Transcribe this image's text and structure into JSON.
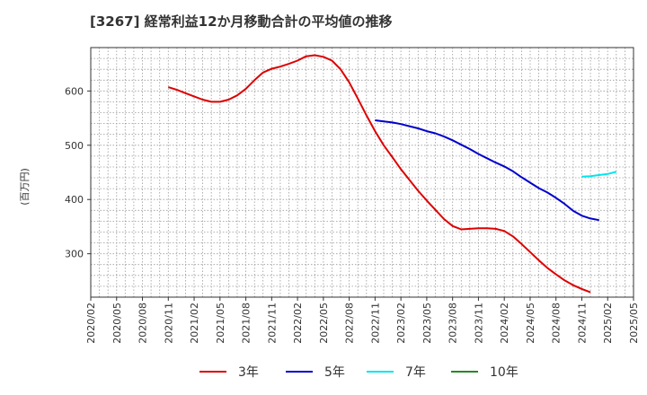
{
  "chart_data": {
    "type": "line",
    "title": "[3267]  経常利益12か月移動合計の平均値の推移",
    "xlabel": "",
    "ylabel": "(百万円)",
    "ylim": [
      220,
      680
    ],
    "yticks": [
      300,
      400,
      500,
      600
    ],
    "x": [
      "2020/02",
      "2020/05",
      "2020/08",
      "2020/11",
      "2021/02",
      "2021/05",
      "2021/08",
      "2021/11",
      "2022/02",
      "2022/05",
      "2022/08",
      "2022/11",
      "2023/02",
      "2023/05",
      "2023/08",
      "2023/11",
      "2024/02",
      "2024/05",
      "2024/08",
      "2024/11",
      "2025/02",
      "2025/05"
    ],
    "grid": true,
    "legend_position": "bottom",
    "series": [
      {
        "name": "3年",
        "color": "#dd0000",
        "points": [
          [
            "2020/11",
            607
          ],
          [
            "2020/12",
            602
          ],
          [
            "2021/01",
            596
          ],
          [
            "2021/02",
            590
          ],
          [
            "2021/03",
            584
          ],
          [
            "2021/04",
            580
          ],
          [
            "2021/05",
            580
          ],
          [
            "2021/06",
            584
          ],
          [
            "2021/07",
            592
          ],
          [
            "2021/08",
            604
          ],
          [
            "2021/09",
            620
          ],
          [
            "2021/10",
            634
          ],
          [
            "2021/11",
            641
          ],
          [
            "2021/12",
            645
          ],
          [
            "2022/01",
            650
          ],
          [
            "2022/02",
            656
          ],
          [
            "2022/03",
            664
          ],
          [
            "2022/04",
            666
          ],
          [
            "2022/05",
            663
          ],
          [
            "2022/06",
            656
          ],
          [
            "2022/07",
            640
          ],
          [
            "2022/08",
            616
          ],
          [
            "2022/09",
            586
          ],
          [
            "2022/10",
            555
          ],
          [
            "2022/11",
            526
          ],
          [
            "2022/12",
            500
          ],
          [
            "2023/01",
            478
          ],
          [
            "2023/02",
            456
          ],
          [
            "2023/03",
            436
          ],
          [
            "2023/04",
            416
          ],
          [
            "2023/05",
            398
          ],
          [
            "2023/06",
            381
          ],
          [
            "2023/07",
            364
          ],
          [
            "2023/08",
            351
          ],
          [
            "2023/09",
            345
          ],
          [
            "2023/10",
            346
          ],
          [
            "2023/11",
            347
          ],
          [
            "2023/12",
            347
          ],
          [
            "2024/01",
            346
          ],
          [
            "2024/02",
            342
          ],
          [
            "2024/03",
            332
          ],
          [
            "2024/04",
            318
          ],
          [
            "2024/05",
            303
          ],
          [
            "2024/06",
            288
          ],
          [
            "2024/07",
            274
          ],
          [
            "2024/08",
            262
          ],
          [
            "2024/09",
            251
          ],
          [
            "2024/10",
            242
          ],
          [
            "2024/11",
            235
          ],
          [
            "2024/12",
            229
          ]
        ]
      },
      {
        "name": "5年",
        "color": "#0000cc",
        "points": [
          [
            "2022/11",
            546
          ],
          [
            "2022/12",
            544
          ],
          [
            "2023/01",
            542
          ],
          [
            "2023/02",
            539
          ],
          [
            "2023/03",
            535
          ],
          [
            "2023/04",
            531
          ],
          [
            "2023/05",
            526
          ],
          [
            "2023/06",
            522
          ],
          [
            "2023/07",
            516
          ],
          [
            "2023/08",
            509
          ],
          [
            "2023/09",
            501
          ],
          [
            "2023/10",
            493
          ],
          [
            "2023/11",
            484
          ],
          [
            "2023/12",
            476
          ],
          [
            "2024/01",
            468
          ],
          [
            "2024/02",
            461
          ],
          [
            "2024/03",
            452
          ],
          [
            "2024/04",
            441
          ],
          [
            "2024/05",
            431
          ],
          [
            "2024/06",
            421
          ],
          [
            "2024/07",
            413
          ],
          [
            "2024/08",
            403
          ],
          [
            "2024/09",
            392
          ],
          [
            "2024/10",
            379
          ],
          [
            "2024/11",
            370
          ],
          [
            "2024/12",
            365
          ],
          [
            "2025/01",
            362
          ]
        ]
      },
      {
        "name": "7年",
        "color": "#00e5ee",
        "points": [
          [
            "2024/11",
            442
          ],
          [
            "2024/12",
            443
          ],
          [
            "2025/01",
            445
          ],
          [
            "2025/02",
            447
          ],
          [
            "2025/03",
            451
          ]
        ]
      },
      {
        "name": "10年",
        "color": "#228b22",
        "points": []
      }
    ]
  }
}
